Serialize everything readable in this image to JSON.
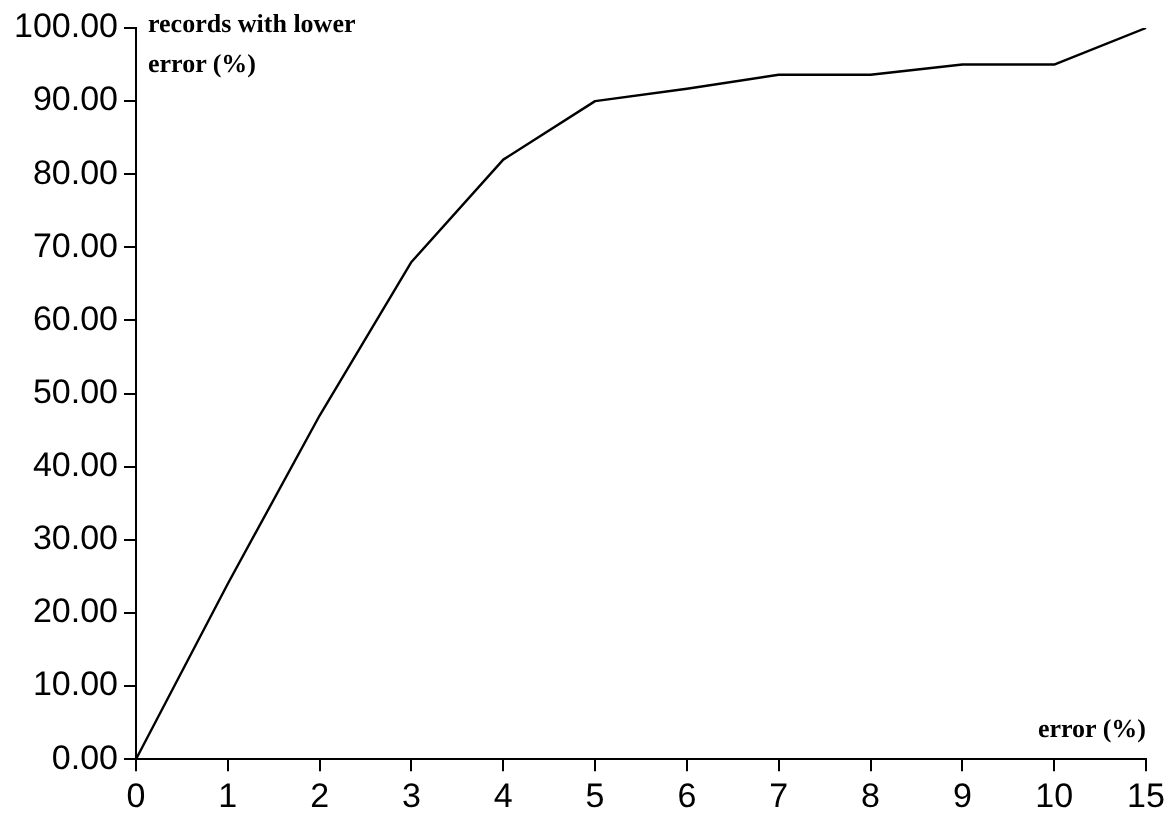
{
  "chart_data": {
    "type": "line",
    "xlabel": "error (%)",
    "ylabel": "records with lower error (%)",
    "categories": [
      "0",
      "1",
      "2",
      "3",
      "4",
      "5",
      "6",
      "7",
      "8",
      "9",
      "10",
      "15"
    ],
    "series": [
      {
        "color": "#000000",
        "values": [
          0,
          24,
          47,
          68,
          82,
          90,
          91.7,
          93.6,
          93.6,
          95,
          95,
          100
        ]
      }
    ],
    "ylim": [
      0,
      100
    ],
    "yticks": [
      {
        "value": 0,
        "label": "0.00"
      },
      {
        "value": 10,
        "label": "10.00"
      },
      {
        "value": 20,
        "label": "20.00"
      },
      {
        "value": 30,
        "label": "30.00"
      },
      {
        "value": 40,
        "label": "40.00"
      },
      {
        "value": 50,
        "label": "50.00"
      },
      {
        "value": 60,
        "label": "60.00"
      },
      {
        "value": 70,
        "label": "70.00"
      },
      {
        "value": 80,
        "label": "80.00"
      },
      {
        "value": 90,
        "label": "90.00"
      },
      {
        "value": 100,
        "label": "100.00"
      }
    ],
    "grid": false,
    "legend": false,
    "marker": "none",
    "line_style": "solid"
  }
}
